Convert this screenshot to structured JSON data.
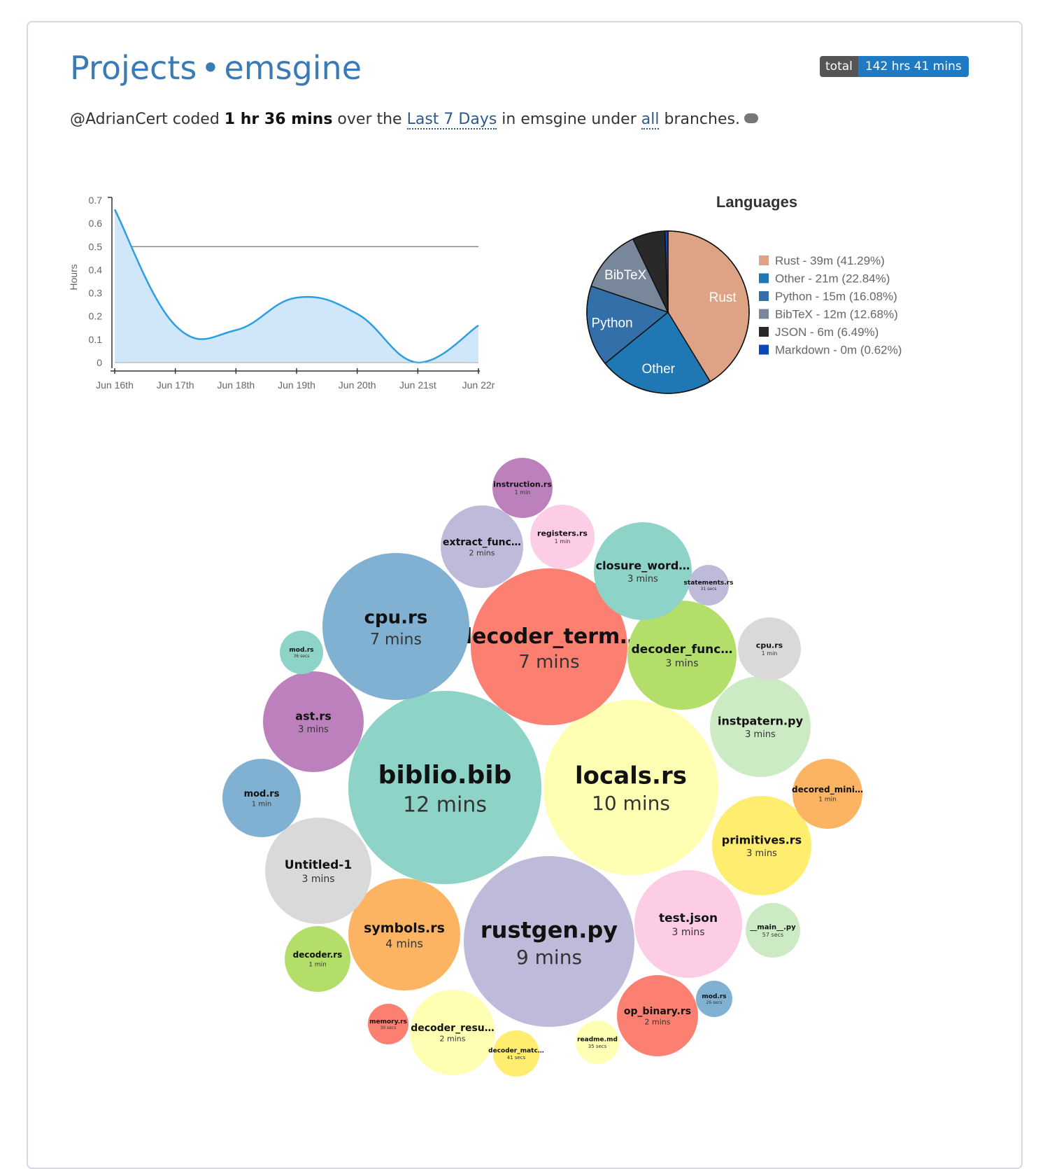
{
  "header": {
    "projects_label": "Projects",
    "separator": "•",
    "project_name": "emsgine",
    "total_label": "total",
    "total_value": "142 hrs 41 mins"
  },
  "summary": {
    "user": "@AdrianCert",
    "coded_text": " coded ",
    "duration": "1 hr 36 mins",
    "over_text": " over the ",
    "range_link": "Last 7 Days",
    "in_text": " in emsgine under ",
    "branches_link": "all",
    "branches_text": " branches."
  },
  "chart_data": [
    {
      "type": "area",
      "ylabel": "Hours",
      "xlabel": "",
      "categories": [
        "Jun 16th",
        "Jun 17th",
        "Jun 18th",
        "Jun 19th",
        "Jun 20th",
        "Jun 21st",
        "Jun 22r"
      ],
      "x": [
        0,
        1,
        2,
        3,
        4,
        5,
        6
      ],
      "values": [
        0.66,
        0.16,
        0.14,
        0.28,
        0.21,
        0.0,
        0.16
      ],
      "ylim": [
        0,
        0.7
      ],
      "yticks": [
        "0",
        "0.1",
        "0.2",
        "0.3",
        "0.4",
        "0.5",
        "0.6",
        "0.7"
      ],
      "reference_line": 0.5,
      "color": "#2f9de3",
      "fill": "#cfe7f8"
    },
    {
      "type": "pie",
      "title": "Languages",
      "legend_position": "right",
      "slices": [
        {
          "label": "Rust",
          "legend": "Rust - 39m (41.29%)",
          "value": 41.29,
          "color": "#dda384",
          "show_label": true
        },
        {
          "label": "Other",
          "legend": "Other - 21m (22.84%)",
          "value": 22.84,
          "color": "#1f77b4",
          "show_label": true
        },
        {
          "label": "Python",
          "legend": "Python - 15m (16.08%)",
          "value": 16.08,
          "color": "#336fa8",
          "show_label": true
        },
        {
          "label": "BibTeX",
          "legend": "BibTeX - 12m (12.68%)",
          "value": 12.68,
          "color": "#78889a",
          "show_label": true
        },
        {
          "label": "JSON",
          "legend": "JSON - 6m (6.49%)",
          "value": 6.49,
          "color": "#292929",
          "show_label": false
        },
        {
          "label": "Markdown",
          "legend": "Markdown - 0m (0.62%)",
          "value": 0.62,
          "color": "#0c46b8",
          "show_label": false
        }
      ]
    },
    {
      "type": "bubble",
      "items": [
        {
          "name": "biblio.bib",
          "time": "12 mins",
          "color": "#8dd3c7"
        },
        {
          "name": "locals.rs",
          "time": "10 mins",
          "color": "#ffffb3"
        },
        {
          "name": "rustgen.py",
          "time": "9 mins",
          "color": "#bebada"
        },
        {
          "name": "decoder_term…",
          "time": "7 mins",
          "color": "#fb8072"
        },
        {
          "name": "cpu.rs",
          "time": "7 mins",
          "color": "#80b1d3"
        },
        {
          "name": "symbols.rs",
          "time": "4 mins",
          "color": "#fdb462"
        },
        {
          "name": "decoder_func…",
          "time": "3 mins",
          "color": "#b3de69"
        },
        {
          "name": "test.json",
          "time": "3 mins",
          "color": "#fccde5"
        },
        {
          "name": "Untitled-1",
          "time": "3 mins",
          "color": "#d9d9d9"
        },
        {
          "name": "ast.rs",
          "time": "3 mins",
          "color": "#bc80bd"
        },
        {
          "name": "instpatern.py",
          "time": "3 mins",
          "color": "#ccebc5"
        },
        {
          "name": "primitives.rs",
          "time": "3 mins",
          "color": "#ffed6f"
        },
        {
          "name": "closure_word…",
          "time": "3 mins",
          "color": "#8dd3c7"
        },
        {
          "name": "extract_func…",
          "time": "2 mins",
          "color": "#bebada"
        },
        {
          "name": "decoder_resu…",
          "time": "2 mins",
          "color": "#ffffb3"
        },
        {
          "name": "op_binary.rs",
          "time": "2 mins",
          "color": "#fb8072"
        },
        {
          "name": "mod.rs",
          "time": "1 min",
          "color": "#80b1d3"
        },
        {
          "name": "registers.rs",
          "time": "1 min",
          "color": "#fccde5"
        },
        {
          "name": "decored_mini…",
          "time": "1 min",
          "color": "#fdb462"
        },
        {
          "name": "cpu.rs",
          "time": "1 min",
          "color": "#d9d9d9"
        },
        {
          "name": "decoder.rs",
          "time": "1 min",
          "color": "#b3de69"
        },
        {
          "name": "instruction.rs",
          "time": "1 min",
          "color": "#bc80bd"
        },
        {
          "name": "__main__.py",
          "time": "57 secs",
          "color": "#ccebc5"
        },
        {
          "name": "decoder_matc…",
          "time": "41 secs",
          "color": "#ffed6f"
        },
        {
          "name": "mod.rs",
          "time": "36 secs",
          "color": "#8dd3c7"
        },
        {
          "name": "readme.md",
          "time": "35 secs",
          "color": "#ffffb3"
        },
        {
          "name": "statements.rs",
          "time": "31 secs",
          "color": "#bebada"
        },
        {
          "name": "memory.rs",
          "time": "30 secs",
          "color": "#fb8072"
        },
        {
          "name": "mod.rs",
          "time": "26 secs",
          "color": "#80b1d3"
        }
      ]
    }
  ]
}
